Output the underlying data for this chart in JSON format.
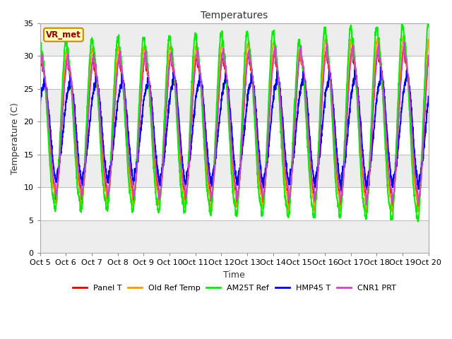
{
  "title": "Temperatures",
  "xlabel": "Time",
  "ylabel": "Temperature (C)",
  "ylim": [
    0,
    35
  ],
  "x_tick_labels": [
    "Oct 5",
    "Oct 6",
    "Oct 7",
    "Oct 8",
    "Oct 9",
    "Oct 10",
    "Oct 11",
    "Oct 12",
    "Oct 13",
    "Oct 14",
    "Oct 15",
    "Oct 16",
    "Oct 17",
    "Oct 18",
    "Oct 19",
    "Oct 20"
  ],
  "series_names": [
    "Panel T",
    "Old Ref Temp",
    "AM25T Ref",
    "HMP45 T",
    "CNR1 PRT"
  ],
  "series_colors": [
    "#dd0000",
    "#ff9900",
    "#00ee00",
    "#0000ee",
    "#cc44cc"
  ],
  "series_lw": [
    1.4,
    1.4,
    1.4,
    1.4,
    1.4
  ],
  "vr_met_label": "VR_met",
  "fig_bg": "#ffffff",
  "plot_bg": "#ffffff",
  "grid_band_color": "#dddddd",
  "n_points": 2000,
  "n_days": 15,
  "yticks": [
    0,
    5,
    10,
    15,
    20,
    25,
    30,
    35
  ]
}
